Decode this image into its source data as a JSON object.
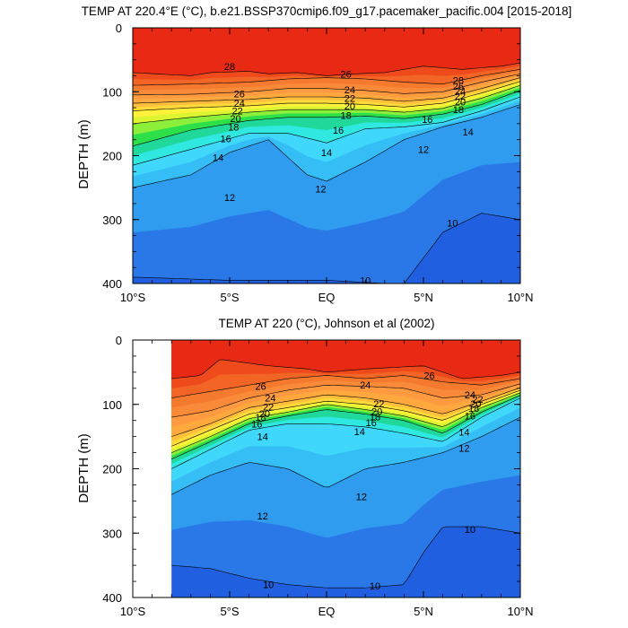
{
  "chart_data": [
    {
      "type": "contour",
      "title": "TEMP AT 220.4°E (°C), b.e21.BSSP370cmip6.f09_g17.pacemaker_pacific.004 [2015-2018]",
      "ylabel": "DEPTH (m)",
      "xlabel": "",
      "xlim": [
        -10,
        10
      ],
      "ylim": [
        400,
        0
      ],
      "y_reversed": true,
      "xtick_labels": [
        "10°S",
        "5°S",
        "EQ",
        "5°N",
        "10°N"
      ],
      "ytick_labels": [
        "0",
        "100",
        "200",
        "300",
        "400"
      ],
      "data_x_range": [
        -10,
        10
      ],
      "isotherms": [
        {
          "level": 28,
          "x": [
            -10,
            -7,
            -6,
            -4,
            -3,
            -1.5,
            0,
            1.5,
            3,
            5,
            7,
            9,
            10
          ],
          "depth": [
            70,
            75,
            70,
            68,
            72,
            70,
            75,
            72,
            70,
            60,
            65,
            60,
            55
          ]
        },
        {
          "level": 26,
          "x": [
            -10,
            -7,
            -4,
            -2,
            0,
            2,
            4,
            6,
            8,
            10
          ],
          "depth": [
            90,
            88,
            85,
            80,
            78,
            80,
            85,
            88,
            75,
            65
          ]
        },
        {
          "level": 24,
          "x": [
            -10,
            -7,
            -4,
            -2,
            0,
            2,
            4,
            6,
            8,
            10
          ],
          "depth": [
            105,
            104,
            100,
            95,
            95,
            98,
            103,
            100,
            85,
            72
          ]
        },
        {
          "level": 22,
          "x": [
            -10,
            -7,
            -4,
            -2,
            0,
            2,
            4,
            6,
            8,
            10
          ],
          "depth": [
            118,
            115,
            112,
            108,
            108,
            110,
            115,
            110,
            95,
            78
          ]
        },
        {
          "level": 20,
          "x": [
            -10,
            -7,
            -4,
            -2,
            0,
            2,
            4,
            6,
            8,
            10
          ],
          "depth": [
            130,
            125,
            122,
            118,
            118,
            120,
            124,
            118,
            102,
            84
          ]
        },
        {
          "level": 18,
          "x": [
            -10,
            -7,
            -4,
            -2,
            0,
            2,
            4,
            6,
            8,
            10
          ],
          "depth": [
            150,
            140,
            132,
            128,
            128,
            128,
            132,
            126,
            110,
            90
          ]
        },
        {
          "level": 16,
          "x": [
            -10,
            -7,
            -4,
            -2,
            0,
            2,
            4,
            6,
            8,
            10
          ],
          "depth": [
            185,
            160,
            145,
            140,
            140,
            138,
            142,
            135,
            120,
            98
          ]
        },
        {
          "level": 14,
          "x": [
            -10,
            -7,
            -4,
            -2,
            0,
            2,
            4,
            6,
            8,
            10
          ],
          "depth": [
            215,
            190,
            165,
            165,
            180,
            158,
            155,
            148,
            130,
            108
          ]
        },
        {
          "level": 12,
          "x": [
            -10,
            -7,
            -5,
            -3,
            -1,
            0,
            2,
            4,
            6,
            8,
            10
          ],
          "depth": [
            250,
            230,
            195,
            175,
            230,
            240,
            210,
            175,
            155,
            140,
            120
          ]
        },
        {
          "level": 10,
          "x": [
            -10,
            -5,
            0,
            3,
            4,
            5,
            6,
            8,
            10
          ],
          "depth": [
            390,
            395,
            395,
            400,
            400,
            360,
            320,
            290,
            300
          ]
        }
      ],
      "contour_labels": [
        {
          "text": "28",
          "x": -5.0,
          "depth": 60
        },
        {
          "text": "26",
          "x": -4.5,
          "depth": 103
        },
        {
          "text": "24",
          "x": -4.5,
          "depth": 118
        },
        {
          "text": "22",
          "x": -4.6,
          "depth": 130
        },
        {
          "text": "20",
          "x": -4.7,
          "depth": 142
        },
        {
          "text": "18",
          "x": -4.8,
          "depth": 155
        },
        {
          "text": "16",
          "x": -5.2,
          "depth": 173
        },
        {
          "text": "14",
          "x": -5.6,
          "depth": 203
        },
        {
          "text": "12",
          "x": -5.0,
          "depth": 265
        },
        {
          "text": "26",
          "x": 1.0,
          "depth": 72
        },
        {
          "text": "24",
          "x": 1.2,
          "depth": 97
        },
        {
          "text": "22",
          "x": 1.2,
          "depth": 110
        },
        {
          "text": "20",
          "x": 1.2,
          "depth": 122
        },
        {
          "text": "18",
          "x": 1.0,
          "depth": 137
        },
        {
          "text": "16",
          "x": 0.6,
          "depth": 160
        },
        {
          "text": "14",
          "x": 0.0,
          "depth": 195
        },
        {
          "text": "12",
          "x": -0.3,
          "depth": 252
        },
        {
          "text": "16",
          "x": 5.2,
          "depth": 143
        },
        {
          "text": "14",
          "x": 7.3,
          "depth": 163
        },
        {
          "text": "12",
          "x": 5.0,
          "depth": 190
        },
        {
          "text": "18",
          "x": 6.8,
          "depth": 128
        },
        {
          "text": "20",
          "x": 6.9,
          "depth": 116
        },
        {
          "text": "22",
          "x": 6.9,
          "depth": 107
        },
        {
          "text": "24",
          "x": 6.9,
          "depth": 99
        },
        {
          "text": "26",
          "x": 6.8,
          "depth": 91
        },
        {
          "text": "28",
          "x": 6.8,
          "depth": 82
        },
        {
          "text": "10",
          "x": 6.5,
          "depth": 305
        },
        {
          "text": "10",
          "x": 2.0,
          "depth": 395
        }
      ]
    },
    {
      "type": "contour",
      "title": "TEMP AT 220 (°C), Johnson et al (2002)",
      "ylabel": "DEPTH (m)",
      "xlabel": "",
      "xlim": [
        -10,
        10
      ],
      "ylim": [
        400,
        0
      ],
      "y_reversed": true,
      "xtick_labels": [
        "10°S",
        "5°S",
        "EQ",
        "5°N",
        "10°N"
      ],
      "ytick_labels": [
        "0",
        "100",
        "200",
        "300",
        "400"
      ],
      "data_x_range": [
        -8,
        10
      ],
      "isotherms": [
        {
          "level": 28,
          "x": [
            -8,
            -6.5,
            -5.5,
            -3,
            -1,
            0,
            2,
            5,
            7,
            9,
            10
          ],
          "depth": [
            60,
            55,
            30,
            40,
            45,
            50,
            45,
            40,
            60,
            55,
            50
          ]
        },
        {
          "level": 26,
          "x": [
            -8,
            -6,
            -4,
            -2,
            0,
            2,
            4,
            6,
            8,
            10
          ],
          "depth": [
            90,
            80,
            70,
            60,
            55,
            60,
            55,
            65,
            70,
            60
          ]
        },
        {
          "level": 24,
          "x": [
            -8,
            -6,
            -4,
            -2,
            0,
            2,
            4,
            6,
            8,
            10
          ],
          "depth": [
            120,
            110,
            90,
            78,
            70,
            72,
            75,
            90,
            85,
            68
          ]
        },
        {
          "level": 22,
          "x": [
            -8,
            -6,
            -4,
            -2,
            0,
            2,
            4,
            6,
            8,
            10
          ],
          "depth": [
            150,
            130,
            105,
            95,
            85,
            90,
            100,
            115,
            95,
            74
          ]
        },
        {
          "level": 20,
          "x": [
            -8,
            -6,
            -4,
            -2,
            0,
            2,
            4,
            6,
            8,
            10
          ],
          "depth": [
            165,
            140,
            115,
            105,
            95,
            100,
            110,
            125,
            100,
            78
          ]
        },
        {
          "level": 18,
          "x": [
            -8,
            -6,
            -4,
            -2,
            0,
            2,
            4,
            6,
            8,
            10
          ],
          "depth": [
            175,
            150,
            122,
            112,
            100,
            108,
            118,
            135,
            105,
            82
          ]
        },
        {
          "level": 16,
          "x": [
            -8,
            -6,
            -4,
            -2,
            0,
            2,
            4,
            6,
            8,
            10
          ],
          "depth": [
            185,
            158,
            130,
            118,
            108,
            115,
            125,
            145,
            112,
            86
          ]
        },
        {
          "level": 14,
          "x": [
            -8,
            -6,
            -4,
            -2,
            0,
            2,
            4,
            6,
            8,
            10
          ],
          "depth": [
            200,
            170,
            140,
            130,
            130,
            135,
            145,
            158,
            120,
            90
          ]
        },
        {
          "level": 12,
          "x": [
            -8,
            -6,
            -4,
            -2,
            -1,
            0,
            2,
            4,
            6,
            8,
            10
          ],
          "depth": [
            240,
            210,
            190,
            200,
            215,
            230,
            200,
            190,
            175,
            150,
            120
          ]
        },
        {
          "level": 10,
          "x": [
            -8,
            -6,
            -4,
            -2,
            0,
            2,
            4,
            5,
            6,
            8,
            10
          ],
          "depth": [
            350,
            355,
            370,
            380,
            385,
            385,
            380,
            330,
            290,
            290,
            300
          ]
        }
      ],
      "contour_labels": [
        {
          "text": "26",
          "x": -3.4,
          "depth": 72
        },
        {
          "text": "24",
          "x": -2.9,
          "depth": 90
        },
        {
          "text": "22",
          "x": -3.0,
          "depth": 104
        },
        {
          "text": "20",
          "x": -3.2,
          "depth": 114
        },
        {
          "text": "18",
          "x": -3.4,
          "depth": 120
        },
        {
          "text": "16",
          "x": -3.6,
          "depth": 130
        },
        {
          "text": "14",
          "x": -3.3,
          "depth": 150
        },
        {
          "text": "12",
          "x": -3.3,
          "depth": 273
        },
        {
          "text": "10",
          "x": -3.0,
          "depth": 380
        },
        {
          "text": "24",
          "x": 2.0,
          "depth": 70
        },
        {
          "text": "22",
          "x": 2.7,
          "depth": 99
        },
        {
          "text": "20",
          "x": 2.6,
          "depth": 111
        },
        {
          "text": "18",
          "x": 2.5,
          "depth": 119
        },
        {
          "text": "16",
          "x": 2.3,
          "depth": 128
        },
        {
          "text": "14",
          "x": 1.7,
          "depth": 142
        },
        {
          "text": "12",
          "x": 1.8,
          "depth": 243
        },
        {
          "text": "26",
          "x": 5.3,
          "depth": 55
        },
        {
          "text": "24",
          "x": 7.4,
          "depth": 85
        },
        {
          "text": "22",
          "x": 7.8,
          "depth": 92
        },
        {
          "text": "20",
          "x": 7.7,
          "depth": 99
        },
        {
          "text": "18",
          "x": 7.6,
          "depth": 106
        },
        {
          "text": "16",
          "x": 7.4,
          "depth": 118
        },
        {
          "text": "14",
          "x": 7.1,
          "depth": 143
        },
        {
          "text": "12",
          "x": 7.1,
          "depth": 168
        },
        {
          "text": "10",
          "x": 2.5,
          "depth": 382
        },
        {
          "text": "10",
          "x": 7.4,
          "depth": 294
        }
      ]
    }
  ],
  "colors": {
    "palette": [
      {
        "level": 9,
        "color": "#1f5fe0"
      },
      {
        "level": 10,
        "color": "#2a78e8"
      },
      {
        "level": 11,
        "color": "#2f9cf0"
      },
      {
        "level": 12,
        "color": "#35bdf5"
      },
      {
        "level": 13,
        "color": "#3fd8fb"
      },
      {
        "level": 14,
        "color": "#2fe8e0"
      },
      {
        "level": 15,
        "color": "#1fd89a"
      },
      {
        "level": 16,
        "color": "#2de04a"
      },
      {
        "level": 17,
        "color": "#8cf03a"
      },
      {
        "level": 18,
        "color": "#dcf530"
      },
      {
        "level": 19,
        "color": "#fff23a"
      },
      {
        "level": 20,
        "color": "#ffd83a"
      },
      {
        "level": 21,
        "color": "#ffbe3c"
      },
      {
        "level": 22,
        "color": "#ffa83e"
      },
      {
        "level": 23,
        "color": "#ff9a40"
      },
      {
        "level": 24,
        "color": "#f98b38"
      },
      {
        "level": 25,
        "color": "#f57a2e"
      },
      {
        "level": 26,
        "color": "#f26524"
      },
      {
        "level": 27,
        "color": "#ee4a1c"
      },
      {
        "level": 28,
        "color": "#e82a14"
      },
      {
        "level": 29,
        "color": "#d90f0f"
      }
    ]
  }
}
